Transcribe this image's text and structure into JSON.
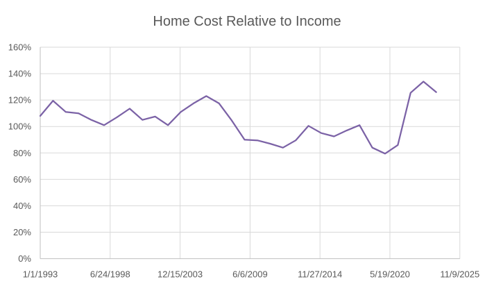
{
  "chart_data": {
    "type": "line",
    "title": "Home Cost Relative to Income",
    "xlabel": "",
    "ylabel": "",
    "ylim": [
      0,
      160
    ],
    "y_tick_step": 20,
    "y_tick_labels": [
      "0%",
      "20%",
      "40%",
      "60%",
      "80%",
      "100%",
      "120%",
      "140%",
      "160%"
    ],
    "x_tick_labels": [
      "1/1/1993",
      "6/24/1998",
      "12/15/2003",
      "6/6/2009",
      "11/27/2014",
      "5/19/2020",
      "11/9/2025"
    ],
    "x_tick_interval_days": 2000,
    "grid": true,
    "legend": false,
    "series": [
      {
        "name": "Home cost relative to income",
        "x": [
          1993,
          1994,
          1995,
          1996,
          1997,
          1998,
          1999,
          2000,
          2001,
          2002,
          2003,
          2004,
          2005,
          2006,
          2007,
          2008,
          2009,
          2010,
          2011,
          2012,
          2013,
          2014,
          2015,
          2016,
          2017,
          2018,
          2019,
          2020,
          2021,
          2022,
          2023,
          2024
        ],
        "values": [
          108,
          119.5,
          111,
          110,
          105,
          101,
          107,
          113.5,
          105,
          107.5,
          101,
          111,
          117.5,
          123,
          117.5,
          104.5,
          90,
          89.5,
          87,
          84,
          89.5,
          100.5,
          95,
          92.5,
          97,
          101,
          84,
          79.5,
          86,
          125.5,
          134,
          126
        ]
      }
    ],
    "colors": {
      "line": "#7B62A6",
      "gridline": "#D9D9D9",
      "axis_line": "#BFBFBF",
      "text": "#595959",
      "background": "#FFFFFF"
    }
  }
}
